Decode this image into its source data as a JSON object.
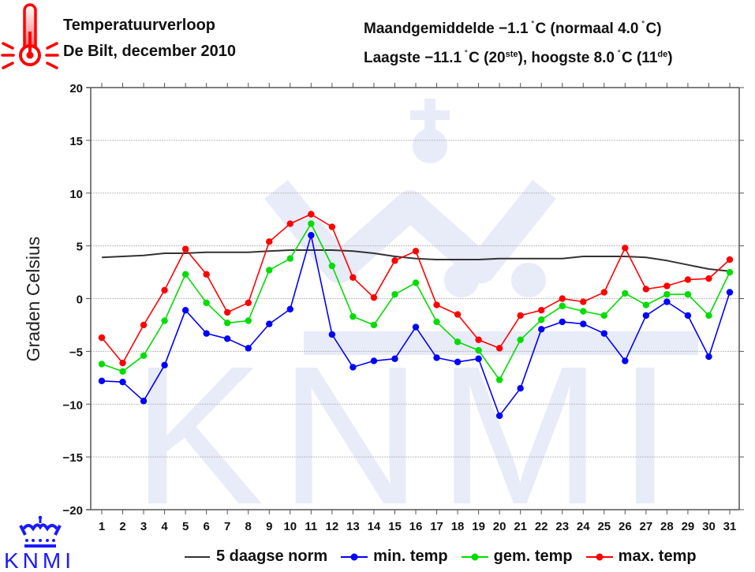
{
  "header": {
    "title": "Temperatuurverloop",
    "subtitle": "De Bilt, december 2010",
    "stats_line1": {
      "prefix": "Maandgemiddelde −1.1",
      "unit": "C",
      "mid": " (normaal 4.0",
      "end": "C)"
    },
    "stats_line2": {
      "prefix": "Laagste −11.1",
      "unit": "C",
      "low_day": " (20",
      "low_suffix": "ste",
      "mid": "), hoogste 8.0",
      "high_day": "C (11",
      "high_suffix": "de",
      "end": ")"
    },
    "degree_symbol": "˚",
    "icon": "thermometer-icon"
  },
  "logo": {
    "text": "KNMI",
    "icon": "crown-icon",
    "color": "#1a1aff"
  },
  "colors": {
    "min": "#0000ff",
    "gem": "#00dd00",
    "max": "#ff0000",
    "norm": "#333333",
    "grid": "#bbbbbb",
    "axis": "#555555",
    "watermark": "#e8ebf8"
  },
  "chart_data": {
    "type": "line",
    "title": "Temperatuurverloop De Bilt, december 2010",
    "xlabel": "",
    "ylabel": "Graden Celsius",
    "ylim": [
      -20,
      20
    ],
    "yticks": [
      20,
      15,
      10,
      5,
      0,
      -5,
      -10,
      -15,
      -20
    ],
    "ytick_labels": [
      "20",
      "15",
      "10",
      "5",
      "0",
      "−5",
      "−10",
      "−15",
      "−20"
    ],
    "grid": true,
    "legend_position": "bottom",
    "x": [
      1,
      2,
      3,
      4,
      5,
      6,
      7,
      8,
      9,
      10,
      11,
      12,
      13,
      14,
      15,
      16,
      17,
      18,
      19,
      20,
      21,
      22,
      23,
      24,
      25,
      26,
      27,
      28,
      29,
      30,
      31
    ],
    "series": [
      {
        "name": "5 daagse norm",
        "color": "#333333",
        "markers": false,
        "values": [
          3.9,
          4.0,
          4.1,
          4.3,
          4.3,
          4.4,
          4.4,
          4.4,
          4.5,
          4.6,
          4.6,
          4.6,
          4.5,
          4.3,
          4.0,
          3.8,
          3.7,
          3.7,
          3.7,
          3.8,
          3.8,
          3.8,
          3.8,
          4.0,
          4.0,
          4.0,
          3.9,
          3.6,
          3.2,
          2.8,
          2.6
        ]
      },
      {
        "name": "min. temp",
        "color": "#0000ff",
        "markers": true,
        "values": [
          -7.8,
          -7.9,
          -9.7,
          -6.3,
          -1.1,
          -3.3,
          -3.8,
          -4.7,
          -2.4,
          -1.0,
          6.0,
          -3.4,
          -6.5,
          -5.9,
          -5.7,
          -2.7,
          -5.6,
          -6.0,
          -5.7,
          -11.1,
          -8.5,
          -2.9,
          -2.2,
          -2.4,
          -3.3,
          -5.9,
          -1.6,
          -0.3,
          -1.6,
          -5.5,
          0.6
        ]
      },
      {
        "name": "gem. temp",
        "color": "#00dd00",
        "markers": true,
        "values": [
          -6.2,
          -6.9,
          -5.4,
          -2.1,
          2.3,
          -0.4,
          -2.3,
          -2.1,
          2.7,
          3.8,
          7.1,
          3.1,
          -1.7,
          -2.5,
          0.4,
          1.5,
          -2.2,
          -4.1,
          -4.9,
          -7.7,
          -3.9,
          -2.0,
          -0.7,
          -1.2,
          -1.6,
          0.5,
          -0.6,
          0.4,
          0.4,
          -1.6,
          2.5
        ]
      },
      {
        "name": "max. temp",
        "color": "#ff0000",
        "markers": true,
        "values": [
          -3.7,
          -6.1,
          -2.5,
          0.8,
          4.7,
          2.3,
          -1.3,
          -0.4,
          5.4,
          7.1,
          8.0,
          6.8,
          2.0,
          0.1,
          3.6,
          4.5,
          -0.6,
          -1.5,
          -3.9,
          -4.7,
          -1.6,
          -1.1,
          0.0,
          -0.3,
          0.6,
          4.8,
          0.9,
          1.2,
          1.8,
          1.9,
          3.7
        ]
      }
    ]
  },
  "legend": [
    {
      "label": "5 daagse norm",
      "key": "norm"
    },
    {
      "label": "min. temp",
      "key": "min"
    },
    {
      "label": "gem. temp",
      "key": "gem"
    },
    {
      "label": "max. temp",
      "key": "max"
    }
  ]
}
